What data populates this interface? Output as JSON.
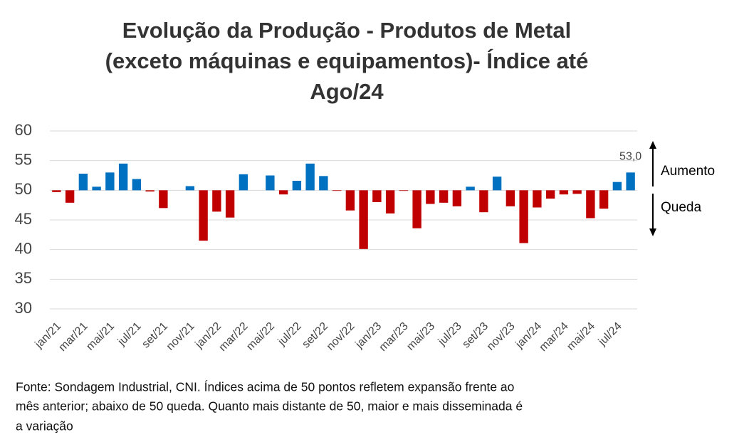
{
  "chart_data": {
    "type": "bar",
    "title": [
      "Evolução da Produção - Produtos de Metal",
      "(exceto máquinas e equipamentos)- Índice até",
      "Ago/24"
    ],
    "categories": [
      "jan/21",
      null,
      "mar/21",
      null,
      "mai/21",
      null,
      "jul/21",
      null,
      "set/21",
      null,
      "nov/21",
      null,
      "jan/22",
      null,
      "mar/22",
      null,
      "mai/22",
      null,
      "jul/22",
      null,
      "set/22",
      null,
      "nov/22",
      null,
      "jan/23",
      null,
      "mar/23",
      null,
      "mai/23",
      null,
      "jul/23",
      null,
      "set/23",
      null,
      "nov/23",
      null,
      "jan/24",
      null,
      "mar/24",
      null,
      "mai/24",
      null,
      "jul/24",
      null
    ],
    "values": [
      49.7,
      47.9,
      52.8,
      50.6,
      53.0,
      54.5,
      51.9,
      49.8,
      47.0,
      50.0,
      50.7,
      41.5,
      46.4,
      45.4,
      52.7,
      50.0,
      52.5,
      49.3,
      51.6,
      54.5,
      52.4,
      49.9,
      46.6,
      40.1,
      48.0,
      46.1,
      49.9,
      43.6,
      47.7,
      47.9,
      47.3,
      50.6,
      46.3,
      52.3,
      47.3,
      41.1,
      47.1,
      48.6,
      49.3,
      49.4,
      45.3,
      46.9,
      51.4,
      53.0
    ],
    "value_labels": [
      null,
      null,
      null,
      null,
      null,
      null,
      null,
      null,
      null,
      null,
      null,
      null,
      null,
      null,
      null,
      null,
      null,
      null,
      null,
      null,
      null,
      null,
      null,
      null,
      null,
      null,
      null,
      null,
      null,
      null,
      null,
      null,
      null,
      null,
      null,
      null,
      null,
      null,
      null,
      null,
      null,
      null,
      null,
      "53,0"
    ],
    "baseline": 50,
    "color_above": "#0070c0",
    "color_below": "#c00000",
    "ylim": [
      30,
      60
    ],
    "yticks": [
      30,
      35,
      40,
      45,
      50,
      55,
      60
    ],
    "grid": true,
    "annotations": {
      "up": "Aumento",
      "down": "Queda"
    },
    "note": [
      "Fonte: Sondagem Industrial, CNI. Índices acima de 50 pontos refletem expansão frente ao",
      "mês anterior; abaixo de 50 queda. Quanto mais distante de 50, maior e mais disseminada é",
      "a variação"
    ]
  }
}
